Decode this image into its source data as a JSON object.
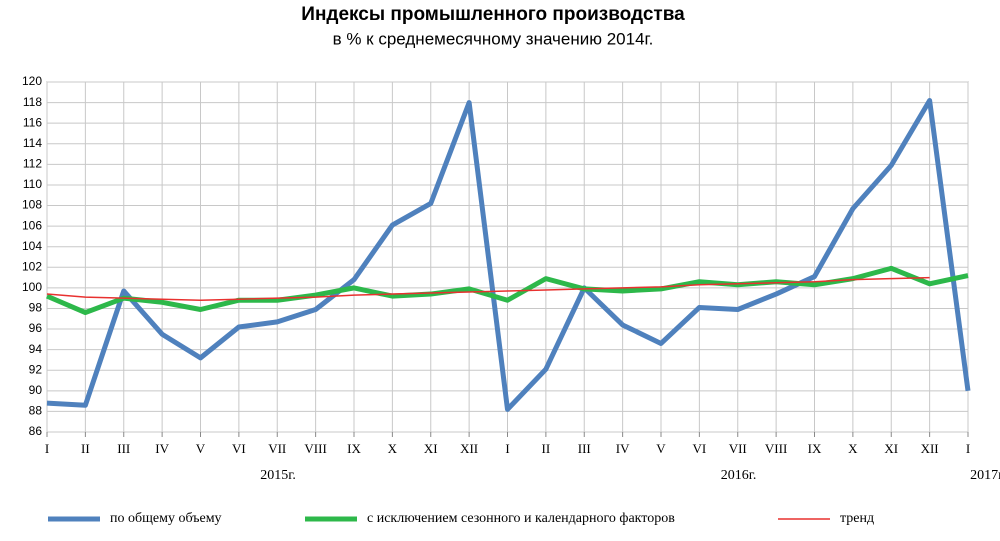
{
  "chart_data": {
    "type": "line",
    "title": "Индексы промышленного производства",
    "subtitle": "в % к среднемесячному значению 2014г.",
    "categories": [
      "I",
      "II",
      "III",
      "IV",
      "V",
      "VI",
      "VII",
      "VIII",
      "IX",
      "X",
      "XI",
      "XII",
      "I",
      "II",
      "III",
      "IV",
      "V",
      "VI",
      "VII",
      "VIII",
      "IX",
      "X",
      "XI",
      "XII",
      "I"
    ],
    "groups": [
      {
        "label": "2015г.",
        "start": 0,
        "end": 11
      },
      {
        "label": "2016г.",
        "start": 12,
        "end": 23
      },
      {
        "label": "2017г.",
        "start": 24,
        "end": 24
      }
    ],
    "series": [
      {
        "name": "по общему объему",
        "color": "#4f81bd",
        "width": 5,
        "values": [
          88.8,
          88.6,
          99.7,
          95.5,
          93.2,
          96.2,
          96.7,
          97.9,
          100.8,
          106.1,
          108.2,
          118.0,
          88.2,
          92.1,
          100.0,
          96.4,
          94.6,
          98.1,
          97.9,
          99.4,
          101.1,
          107.7,
          111.9,
          118.2,
          90.0
        ]
      },
      {
        "name": "с исключением сезонного и календарного факторов",
        "color": "#2db84a",
        "width": 5,
        "values": [
          99.2,
          97.6,
          99.0,
          98.6,
          97.9,
          98.8,
          98.8,
          99.3,
          100.0,
          99.2,
          99.4,
          99.9,
          98.8,
          100.9,
          99.9,
          99.7,
          99.9,
          100.6,
          100.3,
          100.6,
          100.3,
          100.9,
          101.9,
          100.4,
          101.2
        ]
      },
      {
        "name": "тренд",
        "color": "#e8312f",
        "width": 1.5,
        "values": [
          99.4,
          99.1,
          99.0,
          98.9,
          98.8,
          98.9,
          99.0,
          99.1,
          99.3,
          99.4,
          99.5,
          99.6,
          99.7,
          99.8,
          99.9,
          100.0,
          100.1,
          100.3,
          100.4,
          100.5,
          100.6,
          100.8,
          100.9,
          101.0,
          null
        ]
      }
    ],
    "ylim": [
      86,
      120
    ],
    "yticks": [
      86,
      88,
      90,
      92,
      94,
      96,
      98,
      100,
      102,
      104,
      106,
      108,
      110,
      112,
      114,
      116,
      118,
      120
    ],
    "grid": true,
    "legend": "bottom"
  }
}
